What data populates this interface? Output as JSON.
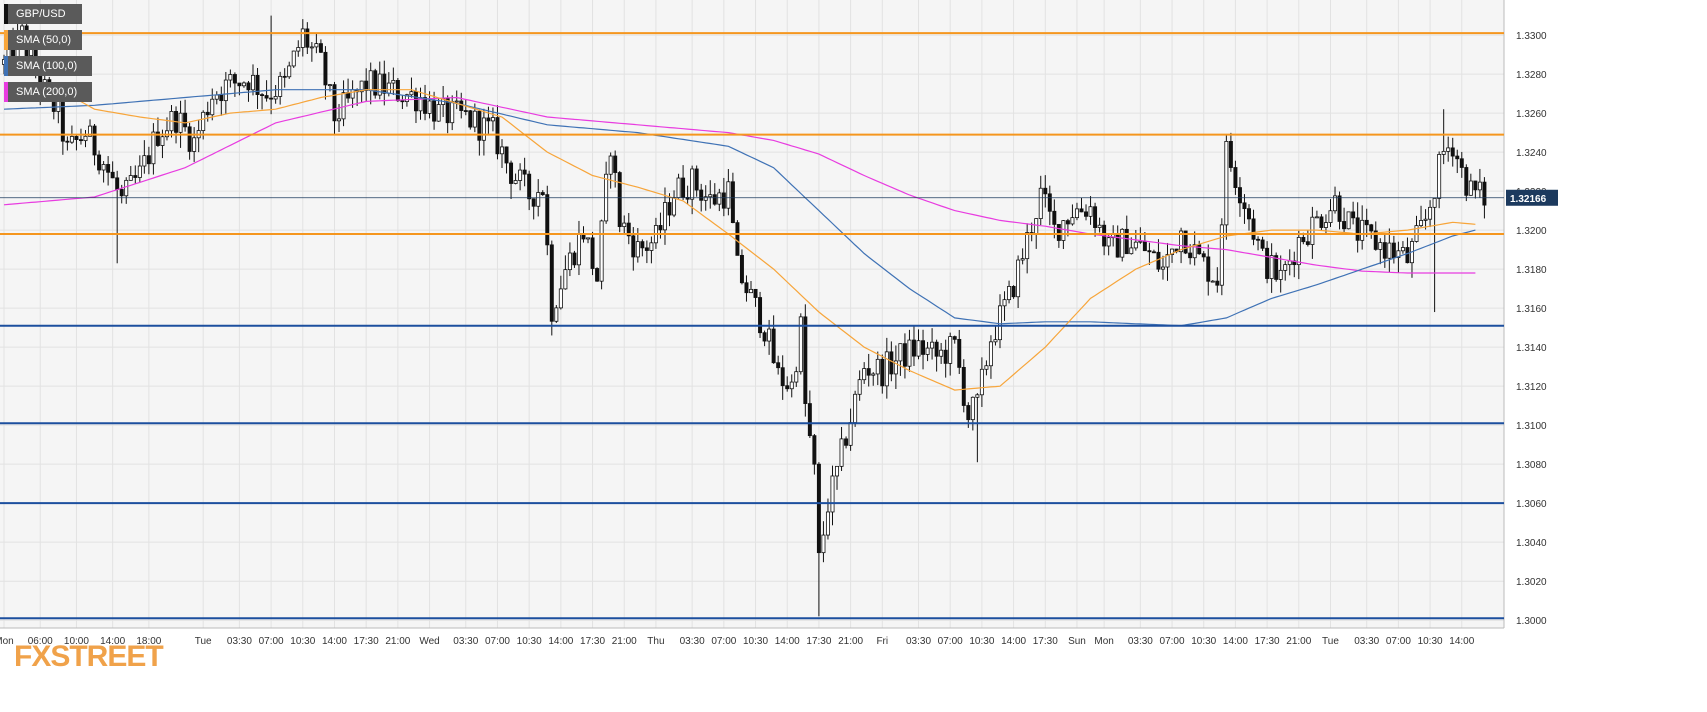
{
  "legend": {
    "symbol": "GBP/USD",
    "sma50": "SMA (50,0)",
    "sma100": "SMA (100,0)",
    "sma200": "SMA (200,0)"
  },
  "colors": {
    "background": "#f5f5f5",
    "grid": "#e2e2e2",
    "candle": "#111111",
    "sma50": "#f7a53a",
    "sma100": "#3f72b5",
    "sma200": "#e83ce0",
    "resistance": "#f5961e",
    "support": "#1c4f9e",
    "price_label": "#1c3a5e"
  },
  "logo_text": "FXSTREET",
  "chart_data": {
    "type": "candlestick",
    "title": "GBP/USD",
    "ylim": [
      1.2996,
      1.3318
    ],
    "yticks": [
      "1.3000",
      "1.3020",
      "1.3040",
      "1.3060",
      "1.3080",
      "1.3100",
      "1.3120",
      "1.3140",
      "1.3160",
      "1.3180",
      "1.3200",
      "1.3220",
      "1.3240",
      "1.3260",
      "1.3280",
      "1.3300"
    ],
    "xticks": [
      {
        "label": "Mon",
        "i": 0
      },
      {
        "label": "06:00",
        "i": 8
      },
      {
        "label": "10:00",
        "i": 16
      },
      {
        "label": "14:00",
        "i": 24
      },
      {
        "label": "18:00",
        "i": 32
      },
      {
        "label": "Tue",
        "i": 44
      },
      {
        "label": "03:30",
        "i": 52
      },
      {
        "label": "07:00",
        "i": 59
      },
      {
        "label": "10:30",
        "i": 66
      },
      {
        "label": "14:00",
        "i": 73
      },
      {
        "label": "17:30",
        "i": 80
      },
      {
        "label": "21:00",
        "i": 87
      },
      {
        "label": "Wed",
        "i": 94
      },
      {
        "label": "03:30",
        "i": 102
      },
      {
        "label": "07:00",
        "i": 109
      },
      {
        "label": "10:30",
        "i": 116
      },
      {
        "label": "14:00",
        "i": 123
      },
      {
        "label": "17:30",
        "i": 130
      },
      {
        "label": "21:00",
        "i": 137
      },
      {
        "label": "Thu",
        "i": 144
      },
      {
        "label": "03:30",
        "i": 152
      },
      {
        "label": "07:00",
        "i": 159
      },
      {
        "label": "10:30",
        "i": 166
      },
      {
        "label": "14:00",
        "i": 173
      },
      {
        "label": "17:30",
        "i": 180
      },
      {
        "label": "21:00",
        "i": 187
      },
      {
        "label": "Fri",
        "i": 194
      },
      {
        "label": "03:30",
        "i": 202
      },
      {
        "label": "07:00",
        "i": 209
      },
      {
        "label": "10:30",
        "i": 216
      },
      {
        "label": "14:00",
        "i": 223
      },
      {
        "label": "17:30",
        "i": 230
      },
      {
        "label": "Sun",
        "i": 237
      },
      {
        "label": "Mon",
        "i": 243
      },
      {
        "label": "03:30",
        "i": 251
      },
      {
        "label": "07:00",
        "i": 258
      },
      {
        "label": "10:30",
        "i": 265
      },
      {
        "label": "14:00",
        "i": 272
      },
      {
        "label": "17:30",
        "i": 279
      },
      {
        "label": "21:00",
        "i": 286
      },
      {
        "label": "Tue",
        "i": 293
      },
      {
        "label": "03:30",
        "i": 301
      },
      {
        "label": "07:00",
        "i": 308
      },
      {
        "label": "10:30",
        "i": 315
      },
      {
        "label": "14:00",
        "i": 322
      }
    ],
    "horizontal_levels": [
      {
        "value": 1.3301,
        "type": "resistance"
      },
      {
        "value": 1.3249,
        "type": "resistance"
      },
      {
        "value": 1.3198,
        "type": "resistance"
      },
      {
        "value": 1.3151,
        "type": "support"
      },
      {
        "value": 1.3101,
        "type": "support"
      },
      {
        "value": 1.306,
        "type": "support"
      },
      {
        "value": 1.3001,
        "type": "support"
      }
    ],
    "last_price": 1.32166,
    "last_price_label": "1.32166",
    "close": [
      [
        0,
        1.3285
      ],
      [
        4,
        1.33
      ],
      [
        8,
        1.3275
      ],
      [
        12,
        1.326
      ],
      [
        14,
        1.324
      ],
      [
        18,
        1.325
      ],
      [
        22,
        1.3235
      ],
      [
        26,
        1.3215
      ],
      [
        30,
        1.3228
      ],
      [
        34,
        1.325
      ],
      [
        38,
        1.3258
      ],
      [
        42,
        1.3245
      ],
      [
        46,
        1.327
      ],
      [
        50,
        1.3275
      ],
      [
        54,
        1.3278
      ],
      [
        58,
        1.327
      ],
      [
        62,
        1.3275
      ],
      [
        66,
        1.33
      ],
      [
        70,
        1.3285
      ],
      [
        73,
        1.3258
      ],
      [
        76,
        1.3265
      ],
      [
        80,
        1.3275
      ],
      [
        84,
        1.3273
      ],
      [
        88,
        1.327
      ],
      [
        92,
        1.3268
      ],
      [
        96,
        1.326
      ],
      [
        102,
        1.3258
      ],
      [
        108,
        1.325
      ],
      [
        112,
        1.323
      ],
      [
        116,
        1.3218
      ],
      [
        119,
        1.3222
      ],
      [
        121,
        1.316
      ],
      [
        124,
        1.318
      ],
      [
        128,
        1.32
      ],
      [
        131,
        1.3175
      ],
      [
        134,
        1.3245
      ],
      [
        136,
        1.3205
      ],
      [
        140,
        1.319
      ],
      [
        144,
        1.3195
      ],
      [
        148,
        1.322
      ],
      [
        152,
        1.3225
      ],
      [
        156,
        1.3215
      ],
      [
        160,
        1.322
      ],
      [
        162,
        1.318
      ],
      [
        165,
        1.3165
      ],
      [
        168,
        1.315
      ],
      [
        171,
        1.3125
      ],
      [
        174,
        1.312
      ],
      [
        176,
        1.315
      ],
      [
        177,
        1.311
      ],
      [
        179,
        1.3075
      ],
      [
        180,
        1.303
      ],
      [
        182,
        1.306
      ],
      [
        184,
        1.3075
      ],
      [
        186,
        1.3095
      ],
      [
        190,
        1.313
      ],
      [
        194,
        1.3128
      ],
      [
        198,
        1.3135
      ],
      [
        202,
        1.314
      ],
      [
        206,
        1.3135
      ],
      [
        210,
        1.314
      ],
      [
        213,
        1.3105
      ],
      [
        215,
        1.311
      ],
      [
        218,
        1.3145
      ],
      [
        222,
        1.3165
      ],
      [
        226,
        1.3195
      ],
      [
        229,
        1.3218
      ],
      [
        232,
        1.32
      ],
      [
        236,
        1.321
      ],
      [
        240,
        1.3212
      ],
      [
        244,
        1.319
      ],
      [
        248,
        1.3195
      ],
      [
        252,
        1.319
      ],
      [
        256,
        1.318
      ],
      [
        260,
        1.32
      ],
      [
        264,
        1.3185
      ],
      [
        268,
        1.3175
      ],
      [
        270,
        1.324
      ],
      [
        274,
        1.3215
      ],
      [
        278,
        1.3185
      ],
      [
        282,
        1.3175
      ],
      [
        286,
        1.3195
      ],
      [
        290,
        1.3205
      ],
      [
        294,
        1.3215
      ],
      [
        298,
        1.32
      ],
      [
        302,
        1.3195
      ],
      [
        306,
        1.319
      ],
      [
        310,
        1.3185
      ],
      [
        314,
        1.3205
      ],
      [
        318,
        1.324
      ],
      [
        320,
        1.3245
      ],
      [
        322,
        1.323
      ],
      [
        324,
        1.322
      ],
      [
        327,
        1.3217
      ]
    ],
    "sma50": [
      [
        0,
        1.327
      ],
      [
        10,
        1.3275
      ],
      [
        20,
        1.3262
      ],
      [
        30,
        1.3258
      ],
      [
        40,
        1.3255
      ],
      [
        50,
        1.326
      ],
      [
        60,
        1.3262
      ],
      [
        70,
        1.3268
      ],
      [
        80,
        1.3272
      ],
      [
        90,
        1.3272
      ],
      [
        100,
        1.3265
      ],
      [
        110,
        1.3258
      ],
      [
        120,
        1.324
      ],
      [
        130,
        1.3228
      ],
      [
        140,
        1.3222
      ],
      [
        150,
        1.3215
      ],
      [
        160,
        1.3198
      ],
      [
        170,
        1.318
      ],
      [
        180,
        1.3158
      ],
      [
        190,
        1.314
      ],
      [
        200,
        1.3128
      ],
      [
        210,
        1.3118
      ],
      [
        220,
        1.312
      ],
      [
        230,
        1.314
      ],
      [
        240,
        1.3165
      ],
      [
        250,
        1.318
      ],
      [
        260,
        1.319
      ],
      [
        270,
        1.3197
      ],
      [
        280,
        1.32
      ],
      [
        290,
        1.32
      ],
      [
        300,
        1.3198
      ],
      [
        310,
        1.32
      ],
      [
        320,
        1.3204
      ],
      [
        325,
        1.3203
      ]
    ],
    "sma100": [
      [
        0,
        1.3262
      ],
      [
        20,
        1.3264
      ],
      [
        40,
        1.3268
      ],
      [
        60,
        1.3272
      ],
      [
        80,
        1.3272
      ],
      [
        100,
        1.3265
      ],
      [
        120,
        1.3254
      ],
      [
        140,
        1.325
      ],
      [
        160,
        1.3243
      ],
      [
        170,
        1.3232
      ],
      [
        180,
        1.321
      ],
      [
        190,
        1.3188
      ],
      [
        200,
        1.317
      ],
      [
        210,
        1.3155
      ],
      [
        220,
        1.3152
      ],
      [
        230,
        1.3153
      ],
      [
        240,
        1.3153
      ],
      [
        250,
        1.3152
      ],
      [
        260,
        1.3151
      ],
      [
        270,
        1.3155
      ],
      [
        280,
        1.3165
      ],
      [
        290,
        1.3172
      ],
      [
        300,
        1.318
      ],
      [
        310,
        1.3188
      ],
      [
        320,
        1.3197
      ],
      [
        325,
        1.32
      ]
    ],
    "sma200": [
      [
        0,
        1.3213
      ],
      [
        20,
        1.3217
      ],
      [
        40,
        1.3232
      ],
      [
        60,
        1.3255
      ],
      [
        80,
        1.3266
      ],
      [
        100,
        1.3268
      ],
      [
        120,
        1.3258
      ],
      [
        140,
        1.3254
      ],
      [
        160,
        1.325
      ],
      [
        170,
        1.3246
      ],
      [
        180,
        1.3239
      ],
      [
        190,
        1.3228
      ],
      [
        200,
        1.3218
      ],
      [
        210,
        1.321
      ],
      [
        220,
        1.3205
      ],
      [
        230,
        1.3202
      ],
      [
        240,
        1.3198
      ],
      [
        250,
        1.3195
      ],
      [
        260,
        1.3192
      ],
      [
        270,
        1.319
      ],
      [
        280,
        1.3186
      ],
      [
        290,
        1.3182
      ],
      [
        300,
        1.3179
      ],
      [
        310,
        1.3178
      ],
      [
        320,
        1.3178
      ],
      [
        325,
        1.3178
      ]
    ],
    "spikes": [
      {
        "i": 25,
        "low": 1.3183
      },
      {
        "i": 59,
        "high": 1.331
      },
      {
        "i": 121,
        "low": 1.3146
      },
      {
        "i": 180,
        "low": 1.3002
      },
      {
        "i": 215,
        "low": 1.3081
      },
      {
        "i": 318,
        "high": 1.3262
      },
      {
        "i": 316,
        "low": 1.3158
      }
    ]
  }
}
